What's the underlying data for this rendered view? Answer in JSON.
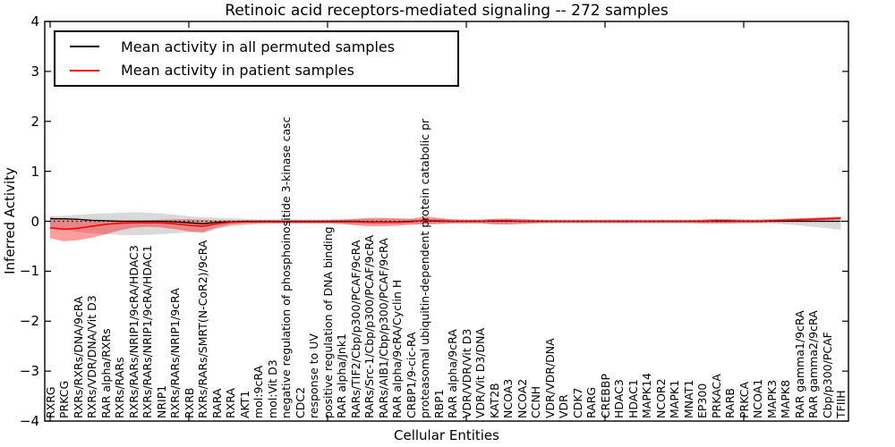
{
  "title": "Retinoic acid receptors-mediated signaling -- 272 samples",
  "axes": {
    "ylabel": "Inferred Activity",
    "xlabel": "Cellular Entities",
    "ytick_labels": [
      "4",
      "3",
      "2",
      "1",
      "0",
      "−1",
      "−2",
      "−3",
      "−4"
    ],
    "ylim": [
      -4,
      4
    ]
  },
  "legend": {
    "items": [
      {
        "label": "Mean activity in all permuted samples",
        "color": "#000000"
      },
      {
        "label": "Mean activity in patient samples",
        "color": "#ff0000"
      }
    ]
  },
  "colors": {
    "permuted_line": "#000000",
    "patient_line": "#ff0000",
    "permuted_band": "rgba(128,128,128,0.30)",
    "patient_band": "rgba(255,0,0,0.38)",
    "zero_line": "#000000",
    "spine": "#000000"
  },
  "chart_data": {
    "type": "line",
    "title": "Retinoic acid receptors-mediated signaling -- 272 samples",
    "xlabel": "Cellular Entities",
    "ylabel": "Inferred Activity",
    "ylim": [
      -4,
      4
    ],
    "grid": false,
    "zero_reference_line": "dotted",
    "legend_position": "upper left",
    "categories": [
      "RXRG",
      "PRKCG",
      "RXRs/RXRs/DNA/9cRA",
      "RXRs/VDR/DNA/Vit D3",
      "RAR alpha/RXRs",
      "RXRs/RARs",
      "RXRs/RARs/NRIP1/9cRA/HDAC3",
      "RXRs/RARs/NRIP1/9cRA/HDAC1",
      "NRIP1",
      "RXRs/RARs/NRIP1/9cRA",
      "RXRB",
      "RXRs/RARs/SMRT(N-CoR2)/9cRA",
      "RARA",
      "RXRA",
      "AKT1",
      "mol:9cRA",
      "mol:Vit D3",
      "negative regulation of phosphoinositide 3-kinase casc",
      "CDC2",
      "response to UV",
      "positive regulation of DNA binding",
      "RAR alpha/Jnk1",
      "RARs/TIF2/Cbp/p300/PCAF/9cRA",
      "RARs/Src-1/Cbp/p300/PCAF/9cRA",
      "RARs/AIB1/Cbp/p300/PCAF/9cRA",
      "RAR alpha/9cRA/Cyclin H",
      "CRBP1/9-cic-RA",
      "proteasomal ubiquitin-dependent protein catabolic pr",
      "RBP1",
      "RAR alpha/9cRA",
      "VDR/VDR/Vit D3",
      "VDR/Vit D3/DNA",
      "KAT2B",
      "NCOA3",
      "NCOA2",
      "CCNH",
      "VDR/VDR/DNA",
      "VDR",
      "CDK7",
      "RARG",
      "CREBBP",
      "HDAC3",
      "HDAC1",
      "MAPK14",
      "NCOR2",
      "MAPK1",
      "MNAT1",
      "EP300",
      "PRKACA",
      "RARB",
      "PRKCA",
      "NCOA1",
      "MAPK3",
      "MAPK8",
      "RAR gamma1/9cRA",
      "RAR gamma2/9cRA",
      "Cbp/p300/PCAF",
      "TFIIH"
    ],
    "series": [
      {
        "name": "Mean activity in all permuted samples",
        "color": "#000000",
        "values": [
          0.05,
          0.05,
          0.04,
          0.02,
          0.01,
          0,
          0,
          0,
          0,
          -0.01,
          -0.03,
          -0.05,
          -0.02,
          -0.01,
          0,
          0,
          0,
          0,
          0,
          0,
          0,
          0,
          0,
          -0.01,
          -0.01,
          -0.01,
          0,
          0.01,
          0,
          0,
          0,
          0,
          0,
          0,
          0,
          0,
          0,
          0,
          0,
          0,
          0,
          0,
          0,
          0,
          0,
          0,
          0,
          0,
          0,
          0,
          0,
          0,
          0,
          0,
          0,
          0,
          0,
          0
        ],
        "band_upper": [
          0.1,
          0.11,
          0.13,
          0.15,
          0.16,
          0.17,
          0.18,
          0.17,
          0.16,
          0.13,
          0.1,
          0.08,
          0.07,
          0.06,
          0.05,
          0.04,
          0.04,
          0.04,
          0.04,
          0.04,
          0.04,
          0.05,
          0.05,
          0.05,
          0.05,
          0.05,
          0.05,
          0.05,
          0.05,
          0.04,
          0.04,
          0.04,
          0.05,
          0.06,
          0.05,
          0.04,
          0.04,
          0.04,
          0.04,
          0.04,
          0.04,
          0.04,
          0.04,
          0.04,
          0.04,
          0.04,
          0.04,
          0.04,
          0.04,
          0.04,
          0.04,
          0.04,
          0.04,
          0.05,
          0.06,
          0.07,
          0.08,
          0.09
        ],
        "band_lower": [
          -0.14,
          -0.17,
          -0.21,
          -0.24,
          -0.26,
          -0.27,
          -0.28,
          -0.27,
          -0.26,
          -0.24,
          -0.22,
          -0.24,
          -0.16,
          -0.1,
          -0.08,
          -0.06,
          -0.05,
          -0.05,
          -0.05,
          -0.05,
          -0.05,
          -0.06,
          -0.06,
          -0.06,
          -0.06,
          -0.06,
          -0.06,
          -0.06,
          -0.06,
          -0.05,
          -0.05,
          -0.05,
          -0.06,
          -0.07,
          -0.06,
          -0.05,
          -0.05,
          -0.05,
          -0.05,
          -0.05,
          -0.05,
          -0.05,
          -0.05,
          -0.05,
          -0.05,
          -0.05,
          -0.05,
          -0.05,
          -0.05,
          -0.05,
          -0.05,
          -0.05,
          -0.05,
          -0.06,
          -0.08,
          -0.11,
          -0.14,
          -0.17
        ]
      },
      {
        "name": "Mean activity in patient samples",
        "color": "#ff0000",
        "values": [
          -0.13,
          -0.16,
          -0.14,
          -0.1,
          -0.06,
          -0.04,
          -0.03,
          -0.03,
          -0.03,
          -0.05,
          -0.08,
          -0.1,
          -0.05,
          -0.02,
          -0.01,
          -0.01,
          -0.01,
          -0.01,
          -0.01,
          -0.01,
          -0.01,
          -0.01,
          -0.01,
          -0.02,
          -0.02,
          -0.02,
          -0.01,
          0.02,
          0.01,
          0,
          0,
          0,
          0.01,
          0.01,
          0,
          0,
          0,
          0,
          0,
          0,
          0,
          0,
          0,
          0,
          0,
          0,
          0,
          0,
          0.01,
          0.01,
          0,
          0,
          0.01,
          0.02,
          0.03,
          0.04,
          0.05,
          0.06
        ],
        "band_upper": [
          0.08,
          0.04,
          0.02,
          0.02,
          0.02,
          0.02,
          0.02,
          0.02,
          0.03,
          0.04,
          0.04,
          0.03,
          0.02,
          0.02,
          0.02,
          0.02,
          0.02,
          0.02,
          0.02,
          0.02,
          0.02,
          0.03,
          0.05,
          0.07,
          0.07,
          0.06,
          0.05,
          0.1,
          0.07,
          0.04,
          0.03,
          0.03,
          0.05,
          0.05,
          0.04,
          0.03,
          0.02,
          0.02,
          0.02,
          0.02,
          0.02,
          0.02,
          0.02,
          0.02,
          0.02,
          0.02,
          0.02,
          0.03,
          0.05,
          0.04,
          0.03,
          0.03,
          0.04,
          0.05,
          0.06,
          0.07,
          0.08,
          0.09
        ],
        "band_lower": [
          -0.34,
          -0.4,
          -0.38,
          -0.33,
          -0.26,
          -0.18,
          -0.13,
          -0.11,
          -0.12,
          -0.16,
          -0.2,
          -0.22,
          -0.13,
          -0.07,
          -0.05,
          -0.04,
          -0.04,
          -0.04,
          -0.04,
          -0.04,
          -0.04,
          -0.05,
          -0.08,
          -0.1,
          -0.1,
          -0.09,
          -0.07,
          -0.06,
          -0.05,
          -0.04,
          -0.04,
          -0.04,
          -0.06,
          -0.06,
          -0.05,
          -0.04,
          -0.03,
          -0.03,
          -0.03,
          -0.03,
          -0.03,
          -0.03,
          -0.03,
          -0.03,
          -0.03,
          -0.03,
          -0.03,
          -0.04,
          -0.04,
          -0.04,
          -0.03,
          -0.03,
          -0.02,
          -0.01,
          0,
          0.01,
          0.02,
          0.03
        ]
      }
    ]
  }
}
